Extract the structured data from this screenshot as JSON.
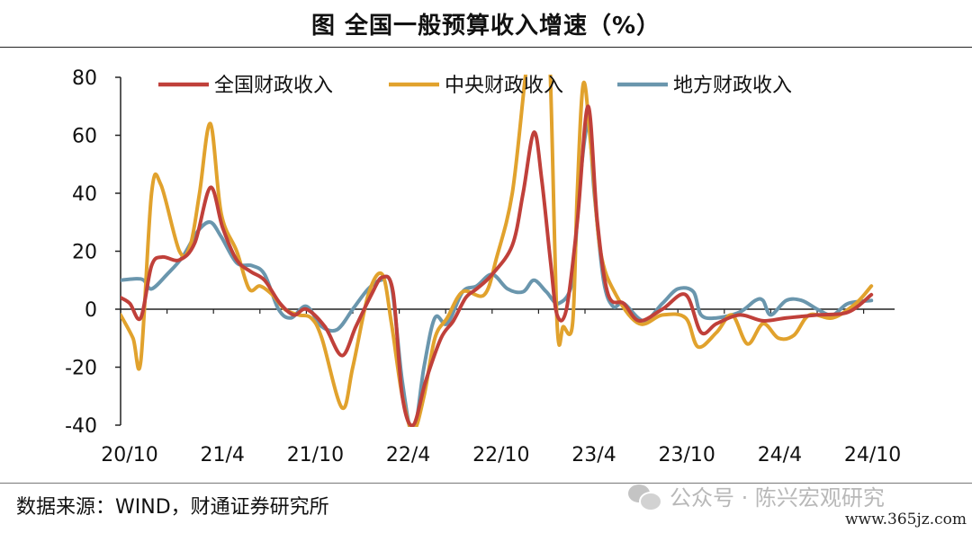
{
  "title": "图  全国一般预算收入增速（%）",
  "source": "数据来源：WIND，财通证券研究所",
  "watermark": "公众号 · 陈兴宏观研究",
  "watermark_icon": "wechat-icon",
  "site": "www.365jz.com",
  "chart_data": {
    "type": "line",
    "title": "",
    "xlabel": "",
    "ylabel": "",
    "ylim": [
      -40,
      80
    ],
    "yticks": [
      -40,
      -20,
      0,
      20,
      40,
      60,
      80
    ],
    "ytick_labels": [
      "-40",
      "-20",
      "0",
      "20",
      "40",
      "60",
      "80"
    ],
    "xlim": [
      0,
      50
    ],
    "xticks": [
      {
        "x": 0,
        "label": "20/10"
      },
      {
        "x": 6,
        "label": "21/4"
      },
      {
        "x": 12,
        "label": "21/10"
      },
      {
        "x": 18,
        "label": "22/4"
      },
      {
        "x": 24,
        "label": "22/10"
      },
      {
        "x": 30,
        "label": "23/4"
      },
      {
        "x": 36,
        "label": "23/10"
      },
      {
        "x": 42,
        "label": "24/4"
      },
      {
        "x": 48,
        "label": "24/10"
      }
    ],
    "grid": false,
    "legend_position": "top",
    "series": [
      {
        "name": "全国财政收入",
        "color": "#C0403A",
        "points": [
          [
            0,
            4
          ],
          [
            0.6,
            2
          ],
          [
            1.3,
            -3
          ],
          [
            2,
            15
          ],
          [
            2.7,
            18
          ],
          [
            3.8,
            17
          ],
          [
            4.8,
            23
          ],
          [
            5.8,
            42
          ],
          [
            6.6,
            28
          ],
          [
            7.5,
            17
          ],
          [
            8.4,
            13
          ],
          [
            9.3,
            10
          ],
          [
            10.3,
            2
          ],
          [
            11.2,
            -2
          ],
          [
            12,
            0
          ],
          [
            13.2,
            -6
          ],
          [
            14.3,
            -16
          ],
          [
            15.2,
            -6
          ],
          [
            16.2,
            5
          ],
          [
            16.9,
            11
          ],
          [
            17.6,
            6
          ],
          [
            18.2,
            -30
          ],
          [
            18.9,
            -40
          ],
          [
            19.7,
            -25
          ],
          [
            20.7,
            -10
          ],
          [
            21.5,
            -4
          ],
          [
            22.3,
            4
          ],
          [
            23,
            7
          ],
          [
            24,
            12
          ],
          [
            25.3,
            22
          ],
          [
            26,
            40
          ],
          [
            26.7,
            61
          ],
          [
            27.2,
            45
          ],
          [
            27.8,
            15
          ],
          [
            28.2,
            -2
          ],
          [
            28.8,
            0
          ],
          [
            29.5,
            30
          ],
          [
            30.2,
            70
          ],
          [
            30.8,
            30
          ],
          [
            31.5,
            5
          ],
          [
            32.5,
            2
          ],
          [
            33.5,
            -4
          ],
          [
            35,
            0
          ],
          [
            36.5,
            5
          ],
          [
            37.5,
            -8
          ],
          [
            38.5,
            -5
          ],
          [
            40,
            -2
          ],
          [
            41.5,
            -4
          ],
          [
            43,
            -3
          ],
          [
            45,
            -2
          ],
          [
            47,
            -1
          ],
          [
            48.5,
            5
          ]
        ]
      },
      {
        "name": "中央财政收入",
        "color": "#E1A22D",
        "points": [
          [
            0,
            -2
          ],
          [
            0.8,
            -10
          ],
          [
            1.3,
            -18
          ],
          [
            2,
            40
          ],
          [
            2.6,
            43
          ],
          [
            3.8,
            20
          ],
          [
            4.5,
            22
          ],
          [
            5.1,
            40
          ],
          [
            5.8,
            64
          ],
          [
            6.5,
            33
          ],
          [
            7.5,
            20
          ],
          [
            8.3,
            7
          ],
          [
            9,
            8
          ],
          [
            9.8,
            5
          ],
          [
            10.6,
            0
          ],
          [
            11.5,
            -2
          ],
          [
            12.3,
            -3
          ],
          [
            13,
            -10
          ],
          [
            14.3,
            -34
          ],
          [
            15,
            -20
          ],
          [
            16,
            5
          ],
          [
            16.9,
            12
          ],
          [
            17.5,
            -5
          ],
          [
            18.2,
            -30
          ],
          [
            18.9,
            -42
          ],
          [
            19.6,
            -30
          ],
          [
            20.3,
            -10
          ],
          [
            21.1,
            -3
          ],
          [
            22.1,
            6
          ],
          [
            23.5,
            5
          ],
          [
            24.3,
            18
          ],
          [
            25.3,
            40
          ],
          [
            26.1,
            78
          ],
          [
            26.4,
            90
          ],
          [
            26.8,
            90
          ],
          [
            27.3,
            90
          ],
          [
            27.7,
            90
          ],
          [
            28.2,
            -5
          ],
          [
            28.6,
            -6
          ],
          [
            29.2,
            -5
          ],
          [
            29.5,
            40
          ],
          [
            29.9,
            78
          ],
          [
            30.4,
            55
          ],
          [
            31,
            20
          ],
          [
            32,
            5
          ],
          [
            33.5,
            -5
          ],
          [
            35,
            -2
          ],
          [
            36.5,
            -3
          ],
          [
            37.3,
            -13
          ],
          [
            38.5,
            -8
          ],
          [
            39.5,
            -2
          ],
          [
            40.5,
            -12
          ],
          [
            41.5,
            -5
          ],
          [
            42.5,
            -10
          ],
          [
            43.5,
            -9
          ],
          [
            44.5,
            -2
          ],
          [
            46,
            -3
          ],
          [
            47.5,
            2
          ],
          [
            48.5,
            8
          ]
        ]
      },
      {
        "name": "地方财政收入",
        "color": "#6A96AD",
        "points": [
          [
            0,
            10
          ],
          [
            1,
            10.5
          ],
          [
            1.5,
            10
          ],
          [
            2,
            7
          ],
          [
            3,
            12
          ],
          [
            4,
            18
          ],
          [
            5,
            27
          ],
          [
            5.8,
            30
          ],
          [
            6.5,
            25
          ],
          [
            7.5,
            16
          ],
          [
            8.5,
            15
          ],
          [
            9.3,
            12
          ],
          [
            10.2,
            0
          ],
          [
            11,
            -3
          ],
          [
            12,
            1
          ],
          [
            13,
            -6
          ],
          [
            14,
            -7
          ],
          [
            15,
            0
          ],
          [
            16,
            7
          ],
          [
            16.8,
            10
          ],
          [
            17.5,
            8
          ],
          [
            18.2,
            -25
          ],
          [
            18.9,
            -43
          ],
          [
            19.6,
            -20
          ],
          [
            20.3,
            -3
          ],
          [
            21.1,
            -5
          ],
          [
            22.1,
            6
          ],
          [
            23,
            8
          ],
          [
            24,
            12
          ],
          [
            25,
            7
          ],
          [
            26,
            6
          ],
          [
            26.7,
            10
          ],
          [
            27.5,
            6
          ],
          [
            28.3,
            2
          ],
          [
            29.2,
            10
          ],
          [
            29.6,
            40
          ],
          [
            30.2,
            64
          ],
          [
            30.6,
            40
          ],
          [
            31.2,
            10
          ],
          [
            31.8,
            1
          ],
          [
            32.5,
            2
          ],
          [
            33.8,
            -4
          ],
          [
            35,
            2
          ],
          [
            36,
            7
          ],
          [
            37,
            6
          ],
          [
            37.5,
            -2
          ],
          [
            38.5,
            -3
          ],
          [
            40,
            -1
          ],
          [
            41,
            3
          ],
          [
            41.5,
            3
          ],
          [
            42,
            -2
          ],
          [
            43,
            3
          ],
          [
            44,
            3
          ],
          [
            45,
            0
          ],
          [
            46,
            -2
          ],
          [
            47,
            2
          ],
          [
            48.5,
            3
          ]
        ]
      }
    ]
  }
}
